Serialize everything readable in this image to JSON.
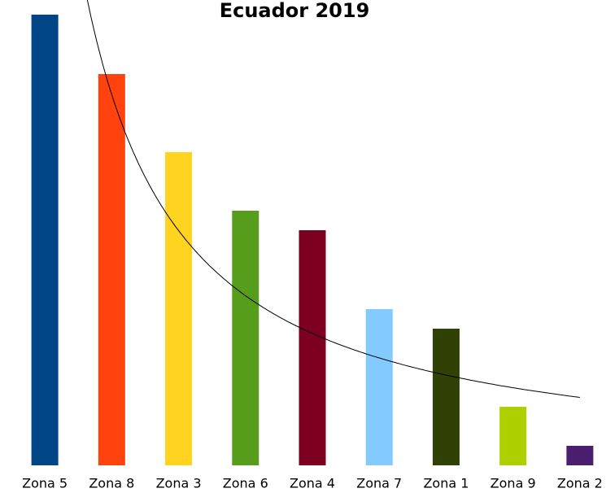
{
  "chart_data": {
    "type": "bar",
    "title": "Ecuador 2019",
    "categories": [
      "Zona 5",
      "Zona 8",
      "Zona 3",
      "Zona 6",
      "Zona 4",
      "Zona 7",
      "Zona 1",
      "Zona 9",
      "Zona 2"
    ],
    "values": [
      554,
      481,
      385,
      313,
      289,
      192,
      168,
      72,
      24
    ],
    "colors": [
      "#004586",
      "#ff420e",
      "#ffd320",
      "#579d1c",
      "#7e0021",
      "#83caff",
      "#314004",
      "#aecf00",
      "#4b1f6f"
    ],
    "ylim": [
      0,
      560
    ],
    "trendline": "power",
    "trendline_color": "#000000"
  }
}
